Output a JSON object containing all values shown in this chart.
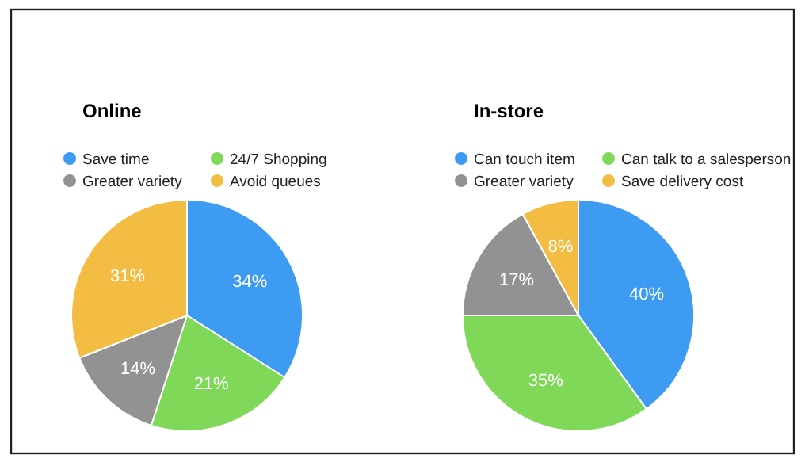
{
  "chart_data": [
    {
      "type": "pie",
      "title": "Online",
      "categories": [
        "Save time",
        "24/7 Shopping",
        "Greater variety",
        "Avoid queues"
      ],
      "values": [
        34,
        21,
        14,
        31
      ],
      "value_labels": [
        "34%",
        "21%",
        "14%",
        "31%"
      ],
      "colors": [
        "#3d9bf2",
        "#7fd857",
        "#929292",
        "#f2bd42"
      ],
      "legend": "top"
    },
    {
      "type": "pie",
      "title": "In-store",
      "categories": [
        "Can touch item",
        "Can talk to a salesperson",
        "Greater variety",
        "Save delivery cost"
      ],
      "values": [
        40,
        35,
        17,
        8
      ],
      "value_labels": [
        "40%",
        "35%",
        "17%",
        "8%"
      ],
      "colors": [
        "#3d9bf2",
        "#7fd857",
        "#929292",
        "#f2bd42"
      ],
      "legend": "top"
    }
  ]
}
